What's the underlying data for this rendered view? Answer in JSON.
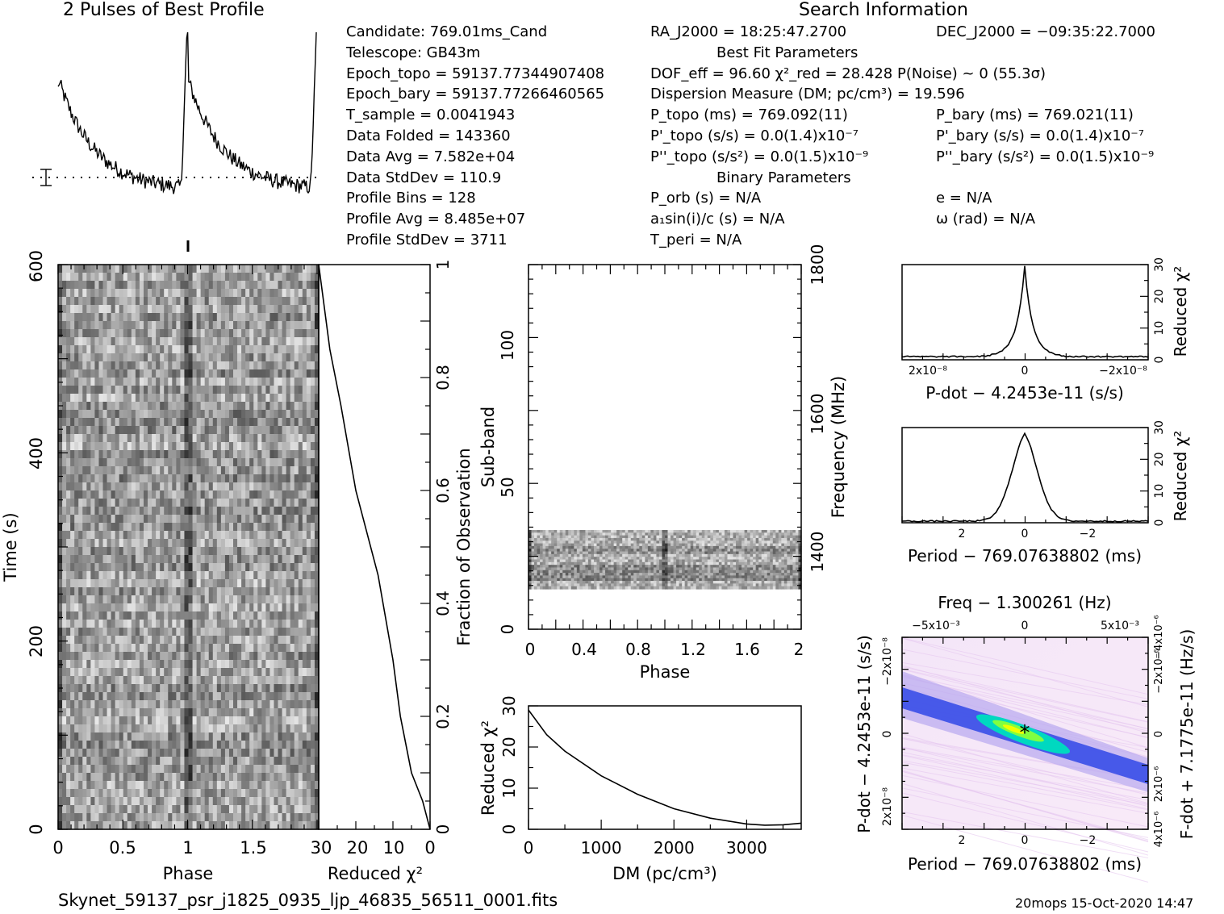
{
  "header": {
    "profile_title": "2 Pulses of Best Profile",
    "search_title": "Search Information",
    "footer_file": "Skynet_59137_psr_j1825_0935_ljp_46835_56511_0001.fits",
    "footer_stamp": "20mops 15-Oct-2020 14:47"
  },
  "info_col1": [
    "Candidate:  769.01ms_Cand",
    "Telescope:  GB43m",
    "Epoch_topo = 59137.77344907408",
    "Epoch_bary = 59137.77266460565",
    "T_sample       =  0.0041943",
    "Data Folded    =  143360",
    "Data Avg       =  7.582e+04",
    "Data StdDev    =  110.9",
    "Profile Bins   =  128",
    "Profile Avg    =  8.485e+07",
    "Profile StdDev =  3711"
  ],
  "info_col2": [
    "RA_J2000 = 18:25:47.2700",
    "Best Fit Parameters",
    "DOF_eff = 96.60  χ²_red = 28.428  P(Noise) ~ 0   (55.3σ)",
    "Dispersion Measure (DM; pc/cm³) = 19.596",
    "P_topo (ms) =  769.092(11)",
    "P'_topo (s/s) = 0.0(1.4)x10⁻⁷",
    "P''_topo (s/s²) = 0.0(1.5)x10⁻⁹",
    "Binary Parameters",
    "P_orb (s) = N/A",
    "a₁sin(i)/c (s) = N/A",
    "T_peri = N/A"
  ],
  "info_col3": [
    "DEC_J2000 = −09:35:22.7000",
    "P_bary (ms) =  769.021(11)",
    "P'_bary (s/s) = 0.0(1.4)x10⁻⁷",
    "P''_bary (s/s²) = 0.0(1.5)x10⁻⁹",
    "e = N/A",
    "ω (rad) = N/A"
  ],
  "chart_data": [
    {
      "type": "line",
      "name_id": "pulse-profile",
      "title": "2 Pulses of Best Profile",
      "x_range": [
        0,
        2
      ],
      "note": "two pulses, sharp rise at phase 1.0, exponential decay"
    },
    {
      "type": "heatmap",
      "name_id": "time-phase",
      "xlabel": "Phase",
      "ylabel": "Time (s)",
      "x_ticks": [
        "0",
        "0.5",
        "1",
        "1.5"
      ],
      "y_ticks": [
        "0",
        "200",
        "400",
        "600"
      ],
      "xlim": [
        0,
        2
      ],
      "ylim": [
        0,
        600
      ]
    },
    {
      "type": "line",
      "name_id": "reduced-chi2-vs-time",
      "xlabel": "Reduced χ²",
      "ylabel": "Fraction of Observation",
      "x_ticks": [
        "30",
        "20",
        "10",
        "0"
      ],
      "y_ticks": [
        "0",
        "0.2",
        "0.4",
        "0.6",
        "0.8",
        "1"
      ],
      "x": [
        0,
        2,
        5,
        8,
        10,
        14,
        20,
        24,
        27,
        29,
        30
      ],
      "y": [
        0.0,
        0.05,
        0.1,
        0.2,
        0.3,
        0.45,
        0.6,
        0.75,
        0.85,
        0.95,
        1.0
      ]
    },
    {
      "type": "heatmap",
      "name_id": "subband-phase",
      "xlabel": "Phase",
      "ylabel": "Sub-band",
      "y2label": "Frequency (MHz)",
      "x_ticks": [
        "0",
        "0.4",
        "0.8",
        "1.2",
        "1.6",
        "2"
      ],
      "y_ticks": [
        "0",
        "50",
        "100"
      ],
      "y2_ticks": [
        "1400",
        "1600",
        "1800"
      ],
      "active_subbands": [
        14,
        35
      ]
    },
    {
      "type": "line",
      "name_id": "chi2-vs-dm",
      "xlabel": "DM (pc/cm³)",
      "ylabel": "Reduced χ²",
      "x_ticks": [
        "0",
        "1000",
        "2000",
        "3000"
      ],
      "y_ticks": [
        "0",
        "10",
        "20",
        "30"
      ],
      "x": [
        0,
        250,
        500,
        1000,
        1500,
        2000,
        2500,
        3000,
        3250,
        3500,
        3750
      ],
      "y": [
        29,
        23,
        19,
        13,
        8.5,
        5,
        2.7,
        1.3,
        1.0,
        1.1,
        1.5
      ]
    },
    {
      "type": "line",
      "name_id": "chi2-vs-pdot",
      "xlabel": "P-dot − 4.2453e-11 (s/s)",
      "ylabel": "Reduced χ²",
      "x_ticks": [
        "2x10⁻⁸",
        "0",
        "−2x10⁻⁸"
      ],
      "y_ticks": [
        "0",
        "10",
        "20",
        "30"
      ],
      "x": [
        3,
        2,
        1,
        0.5,
        0.2,
        0,
        -0.2,
        -0.5,
        -1,
        -2,
        -3
      ],
      "y": [
        1,
        1.5,
        2,
        3,
        9,
        28,
        9,
        3,
        2,
        1.5,
        1
      ]
    },
    {
      "type": "line",
      "name_id": "chi2-vs-period",
      "xlabel": "Period − 769.07638802 (ms)",
      "ylabel": "Reduced χ²",
      "x_ticks": [
        "2",
        "0",
        "−2"
      ],
      "y_ticks": [
        "0",
        "10",
        "20",
        "30"
      ],
      "x": [
        4,
        2,
        1,
        0.5,
        0.2,
        0,
        -0.2,
        -0.5,
        -1,
        -2,
        -4
      ],
      "y": [
        0.5,
        1.2,
        5,
        13,
        21,
        28,
        21,
        13,
        5,
        1.2,
        0.5
      ]
    },
    {
      "type": "heatmap",
      "name_id": "period-pdot",
      "title": "Freq − 1.300261 (Hz)",
      "xlabel": "Period − 769.07638802 (ms)",
      "ylabel": "P-dot − 4.2453e-11 (s/s)",
      "y2label": "F-dot + 7.1775e-11 (Hz/s)",
      "x_ticks": [
        "2",
        "0",
        "−2"
      ],
      "top_ticks": [
        "−5x10⁻³",
        "0",
        "5x10⁻³"
      ],
      "y_ticks": [
        "−2x10⁻⁸",
        "0",
        "2x10⁻⁸"
      ],
      "y2_ticks": [
        "−4x10⁻⁶",
        "−2x10⁻⁶",
        "0",
        "2x10⁻⁶",
        "4x10⁻⁶"
      ]
    }
  ]
}
